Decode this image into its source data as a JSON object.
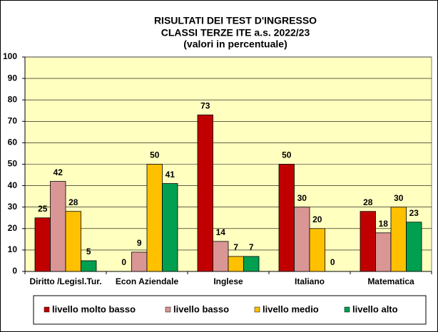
{
  "chart_data": {
    "type": "bar",
    "title": [
      "RISULTATI DEI TEST D'INGRESSO",
      "CLASSI  TERZE  ITE a.s. 2022/23",
      "(valori in percentuale)"
    ],
    "categories": [
      "Diritto /Legisl.Tur.",
      "Econ Aziendale",
      "Inglese",
      "Italiano",
      "Matematica"
    ],
    "series": [
      {
        "name": "livello molto  basso",
        "color": "#c00000",
        "values": [
          25,
          0,
          73,
          50,
          28
        ]
      },
      {
        "name": "livello basso",
        "color": "#d99694",
        "values": [
          42,
          9,
          14,
          30,
          18
        ]
      },
      {
        "name": "livello medio",
        "color": "#ffc000",
        "values": [
          28,
          50,
          7,
          20,
          30
        ]
      },
      {
        "name": "livello alto",
        "color": "#00a050",
        "values": [
          5,
          41,
          7,
          0,
          23
        ]
      }
    ],
    "ylim": [
      0,
      100
    ],
    "yticks": [
      0,
      10,
      20,
      30,
      40,
      50,
      60,
      70,
      80,
      90,
      100
    ],
    "grid": true,
    "legend": "bottom"
  }
}
